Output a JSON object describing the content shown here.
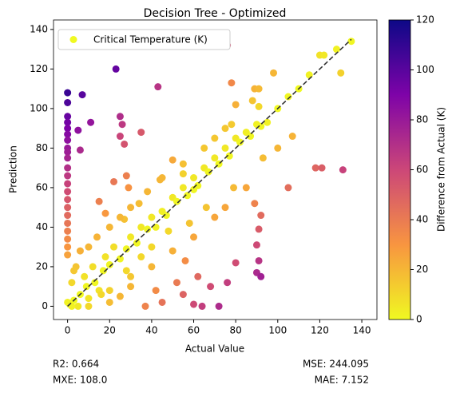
{
  "chart_data": {
    "type": "scatter",
    "title": "Decision Tree - Optimized",
    "xlabel": "Actual Value",
    "ylabel": "Prediction",
    "xlim": [
      -6.7,
      147.2
    ],
    "ylim": [
      -6.7,
      144.8
    ],
    "xticks": [
      0,
      20,
      40,
      60,
      80,
      100,
      120,
      140
    ],
    "yticks": [
      0,
      20,
      40,
      60,
      80,
      100,
      120,
      140
    ],
    "legend": "upper left",
    "series": [
      {
        "name": "Critical Temperature (K)",
        "color": "#f0f921",
        "x": [
          0,
          0,
          7,
          0,
          0,
          0,
          0,
          5,
          0,
          0,
          0,
          6,
          0,
          0,
          0,
          0,
          0,
          0,
          0,
          0,
          0,
          0,
          0,
          0,
          0,
          11,
          23,
          25,
          26,
          25,
          27,
          35,
          43,
          28,
          29,
          22,
          15,
          18,
          27,
          34,
          44,
          50,
          55,
          60,
          75,
          79,
          80,
          78,
          76,
          88,
          89,
          91,
          91,
          98,
          107,
          118,
          121,
          131,
          105,
          89,
          92,
          91,
          90,
          91,
          90,
          92,
          80,
          76,
          72,
          68,
          60,
          64,
          55,
          52,
          45,
          42,
          37,
          30,
          25,
          20,
          15,
          10,
          5,
          8,
          12,
          18,
          22,
          30,
          35,
          40,
          45,
          50,
          55,
          60,
          65,
          70,
          75,
          80,
          85,
          90,
          95,
          100,
          105,
          110,
          115,
          120,
          122,
          128,
          135,
          130,
          3,
          6,
          9,
          13,
          17,
          20,
          25,
          28,
          33,
          38,
          42,
          47,
          52,
          57,
          62,
          67,
          72,
          77,
          82,
          87,
          92,
          2,
          4,
          6,
          3,
          10,
          14,
          20,
          25,
          30,
          38,
          45,
          55,
          65,
          70,
          78,
          10,
          20,
          30,
          40,
          50,
          60,
          70,
          75,
          85,
          93,
          100,
          56,
          62,
          40,
          48,
          58,
          66,
          35,
          28,
          16,
          1,
          0,
          2
        ],
        "values": [
          108,
          103,
          107,
          96,
          93,
          90,
          87,
          89,
          84,
          80,
          78,
          79,
          75,
          70,
          66,
          62,
          58,
          54,
          50,
          46,
          42,
          38,
          34,
          30,
          26,
          93,
          120,
          96,
          92,
          86,
          82,
          88,
          111,
          66,
          60,
          63,
          53,
          47,
          44,
          52,
          64,
          74,
          67,
          59,
          90,
          60,
          102,
          113,
          132,
          104,
          110,
          110,
          101,
          118,
          86,
          70,
          70,
          69,
          60,
          52,
          46,
          39,
          31,
          23,
          17,
          15,
          22,
          12,
          0,
          10,
          1,
          0,
          6,
          12,
          2,
          8,
          0,
          10,
          5,
          2,
          8,
          4,
          0,
          15,
          20,
          25,
          30,
          35,
          40,
          45,
          48,
          55,
          60,
          65,
          70,
          75,
          80,
          85,
          88,
          92,
          93,
          100,
          106,
          110,
          117,
          127,
          127,
          130,
          134,
          118,
          3,
          6,
          10,
          12,
          18,
          21,
          24,
          29,
          32,
          39,
          40,
          46,
          53,
          56,
          61,
          68,
          72,
          76,
          83,
          86,
          91,
          12,
          20,
          28,
          18,
          30,
          35,
          40,
          45,
          50,
          58,
          65,
          72,
          80,
          85,
          92,
          0,
          8,
          15,
          20,
          28,
          35,
          45,
          50,
          60,
          75,
          80,
          23,
          15,
          30,
          38,
          42,
          50,
          25,
          18,
          6,
          1,
          2,
          0
        ]
      }
    ],
    "diagonal": {
      "x": [
        0,
        135
      ],
      "y": [
        0,
        135
      ]
    },
    "colorbar": {
      "label": "Difference from Actual (K)",
      "lim": [
        0,
        120
      ],
      "ticks": [
        0,
        20,
        40,
        60,
        80,
        100,
        120
      ]
    },
    "metrics": {
      "r2": "R2: 0.664",
      "mxe": "MXE: 108.0",
      "mse": "MSE: 244.095",
      "mae": "MAE: 7.152"
    }
  }
}
